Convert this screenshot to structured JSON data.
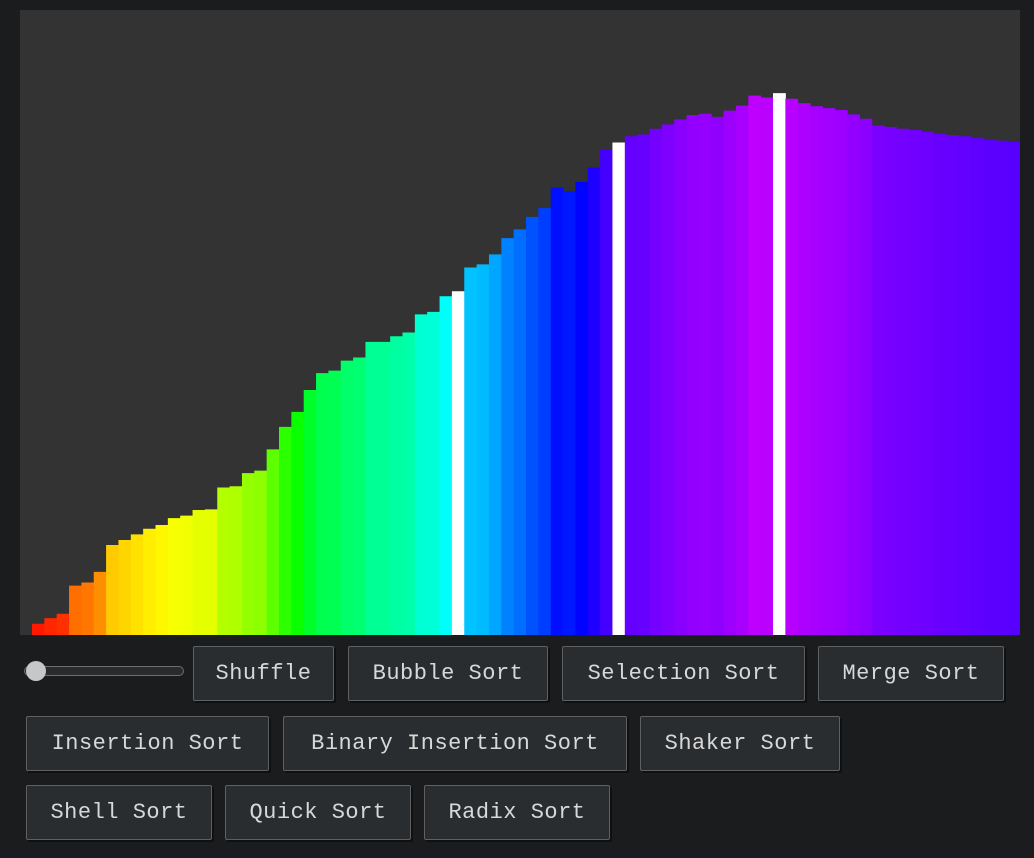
{
  "visualizer": {
    "values": [
      18,
      27,
      34,
      79,
      84,
      101,
      144,
      152,
      161,
      170,
      176,
      187,
      191,
      200,
      201,
      236,
      238,
      259,
      263,
      297,
      333,
      357,
      392,
      419,
      423,
      439,
      444,
      469,
      469,
      478,
      484,
      513,
      517,
      542,
      550,
      588,
      593,
      609,
      635,
      649,
      669,
      683,
      716,
      710,
      725,
      748,
      776,
      788,
      798,
      801,
      810,
      817,
      825,
      832,
      834,
      829,
      839,
      847,
      863,
      860,
      867,
      858,
      851,
      846,
      843,
      840,
      833,
      826,
      815,
      813,
      810,
      808,
      805,
      802,
      800,
      798,
      795,
      792,
      791,
      789
    ],
    "highlighted_indices": [
      34,
      47,
      60
    ],
    "highlight_color": "#ffffff",
    "background_color": "#333333"
  },
  "speed_slider": {
    "value": 0
  },
  "buttons": {
    "shuffle": "Shuffle",
    "bubble_sort": "Bubble Sort",
    "selection_sort": "Selection Sort",
    "merge_sort": "Merge Sort",
    "insertion_sort": "Insertion Sort",
    "binary_insertion_sort": "Binary Insertion Sort",
    "shaker_sort": "Shaker Sort",
    "shell_sort": "Shell Sort",
    "quick_sort": "Quick Sort",
    "radix_sort": "Radix Sort"
  }
}
